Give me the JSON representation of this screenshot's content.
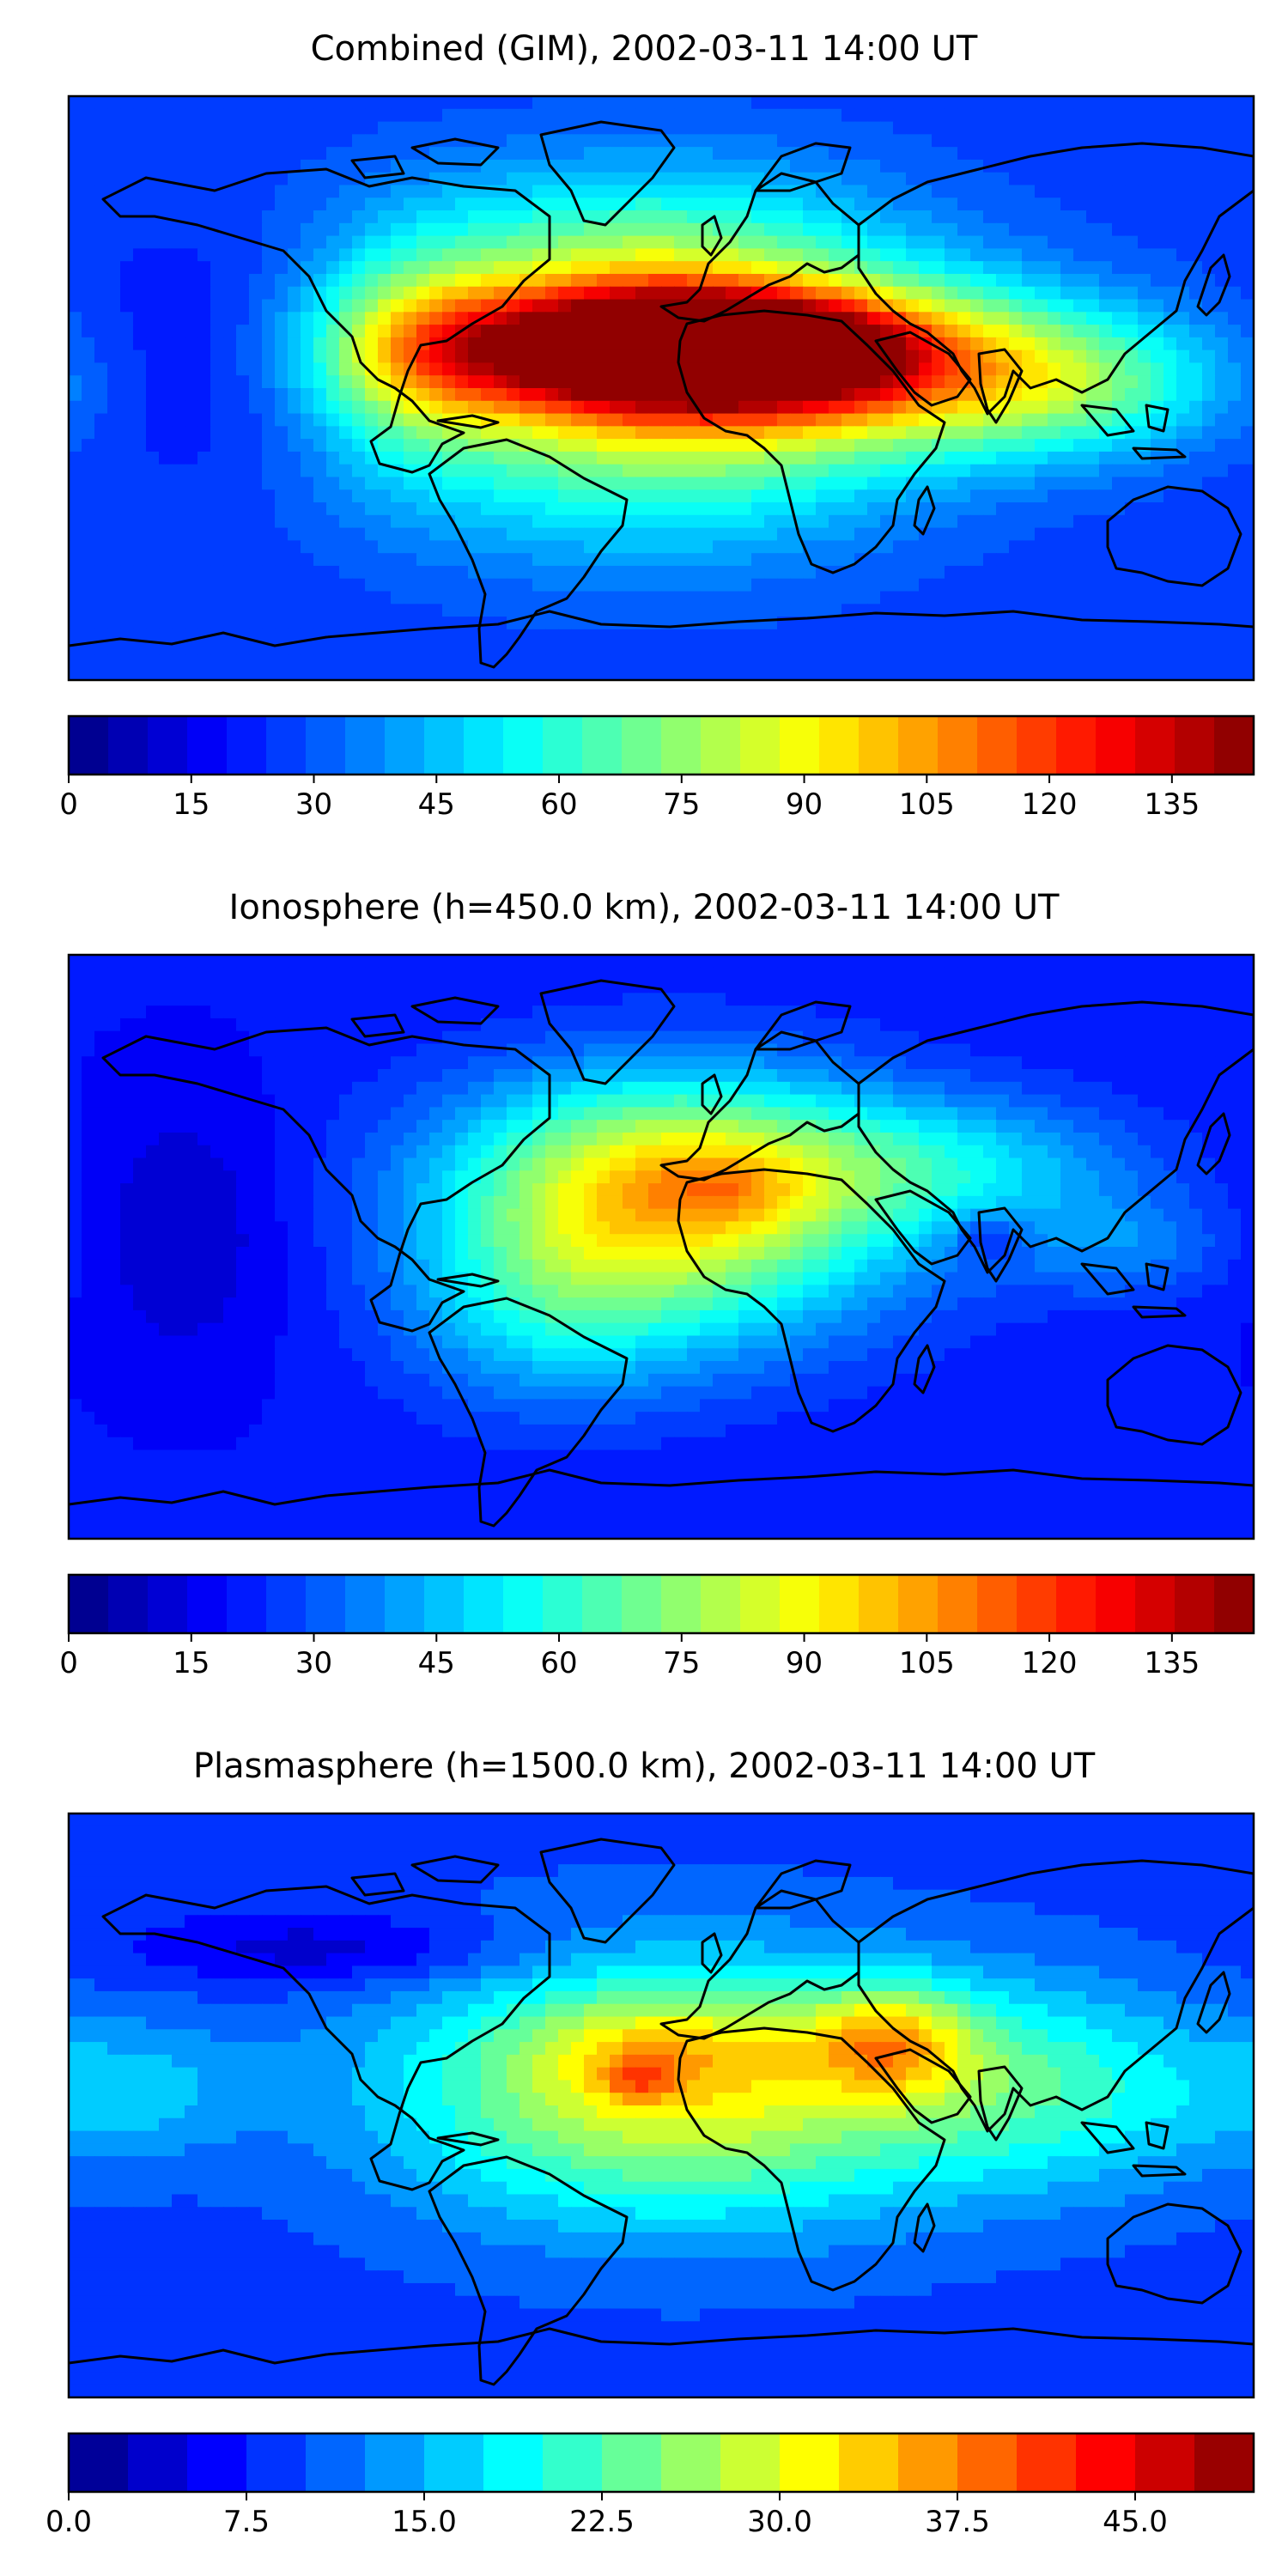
{
  "chart_data": [
    {
      "type": "heatmap",
      "title": "Combined (GIM), 2002-03-11 14:00 UT",
      "projection": "plate-carree",
      "colormap": "jet",
      "levels": 30,
      "vmin": 0,
      "vmax": 145,
      "colorbar_ticks": [
        "0",
        "15",
        "30",
        "45",
        "60",
        "75",
        "90",
        "105",
        "120",
        "135"
      ],
      "tick_values": [
        0,
        15,
        30,
        45,
        60,
        75,
        90,
        105,
        120,
        135
      ],
      "background_value": 26,
      "blobs": [
        {
          "lon": -5,
          "lat": 12,
          "amp": 106,
          "sx": 52,
          "sy": 14
        },
        {
          "lon": 10,
          "lat": 15,
          "amp": 18,
          "sx": 22,
          "sy": 8
        },
        {
          "lon": 40,
          "lat": 12,
          "amp": 30,
          "sx": 25,
          "sy": 10
        },
        {
          "lon": -5,
          "lat": -10,
          "amp": 48,
          "sx": 55,
          "sy": 28
        },
        {
          "lon": -5,
          "lat": 40,
          "amp": 38,
          "sx": 55,
          "sy": 22
        },
        {
          "lon": 80,
          "lat": 5,
          "amp": 52,
          "sx": 50,
          "sy": 18
        },
        {
          "lon": 130,
          "lat": 0,
          "amp": 18,
          "sx": 30,
          "sy": 14
        },
        {
          "lon": -75,
          "lat": 10,
          "amp": 25,
          "sx": 20,
          "sy": 25
        },
        {
          "lon": -140,
          "lat": 10,
          "amp": -10,
          "sx": 25,
          "sy": 25
        }
      ]
    },
    {
      "type": "heatmap",
      "title": "Ionosphere  (h=450.0 km), 2002-03-11 14:00 UT",
      "projection": "plate-carree",
      "colormap": "jet",
      "levels": 30,
      "vmin": 0,
      "vmax": 145,
      "colorbar_ticks": [
        "0",
        "15",
        "30",
        "45",
        "60",
        "75",
        "90",
        "105",
        "120",
        "135"
      ],
      "tick_values": [
        0,
        15,
        30,
        45,
        60,
        75,
        90,
        105,
        120,
        135
      ],
      "background_value": 20,
      "blobs": [
        {
          "lon": 5,
          "lat": 10,
          "amp": 58,
          "sx": 48,
          "sy": 28
        },
        {
          "lon": 0,
          "lat": 25,
          "amp": 25,
          "sx": 45,
          "sy": 20
        },
        {
          "lon": 20,
          "lat": 18,
          "amp": 12,
          "sx": 15,
          "sy": 8
        },
        {
          "lon": -35,
          "lat": -20,
          "amp": 20,
          "sx": 30,
          "sy": 22
        },
        {
          "lon": 90,
          "lat": 25,
          "amp": 25,
          "sx": 40,
          "sy": 15
        },
        {
          "lon": 100,
          "lat": 3,
          "amp": -15,
          "sx": 8,
          "sy": 5
        },
        {
          "lon": 140,
          "lat": 0,
          "amp": 15,
          "sx": 25,
          "sy": 12
        },
        {
          "lon": -145,
          "lat": 5,
          "amp": -10,
          "sx": 22,
          "sy": 30
        }
      ]
    },
    {
      "type": "heatmap",
      "title": "Plasmasphere (h=1500.0 km), 2002-03-11 14:00 UT",
      "projection": "plate-carree",
      "colormap": "jet",
      "levels": 20,
      "vmin": 0,
      "vmax": 50,
      "colorbar_ticks": [
        "0.0",
        "7.5",
        "15.0",
        "22.5",
        "30.0",
        "37.5",
        "45.0"
      ],
      "tick_values": [
        0,
        7.5,
        15,
        22.5,
        30,
        37.5,
        45
      ],
      "background_value": 9,
      "blobs": [
        {
          "lon": 5,
          "lat": 5,
          "amp": 22,
          "sx": 60,
          "sy": 28
        },
        {
          "lon": 0,
          "lat": 18,
          "amp": 6,
          "sx": 30,
          "sy": 10
        },
        {
          "lon": -7,
          "lat": 8,
          "amp": 8,
          "sx": 8,
          "sy": 5
        },
        {
          "lon": 70,
          "lat": 20,
          "amp": 14,
          "sx": 18,
          "sy": 12
        },
        {
          "lon": 120,
          "lat": 5,
          "amp": 10,
          "sx": 40,
          "sy": 22
        },
        {
          "lon": -160,
          "lat": 5,
          "amp": 6,
          "sx": 25,
          "sy": 15
        },
        {
          "lon": -100,
          "lat": 48,
          "amp": -6,
          "sx": 40,
          "sy": 8
        }
      ]
    }
  ]
}
